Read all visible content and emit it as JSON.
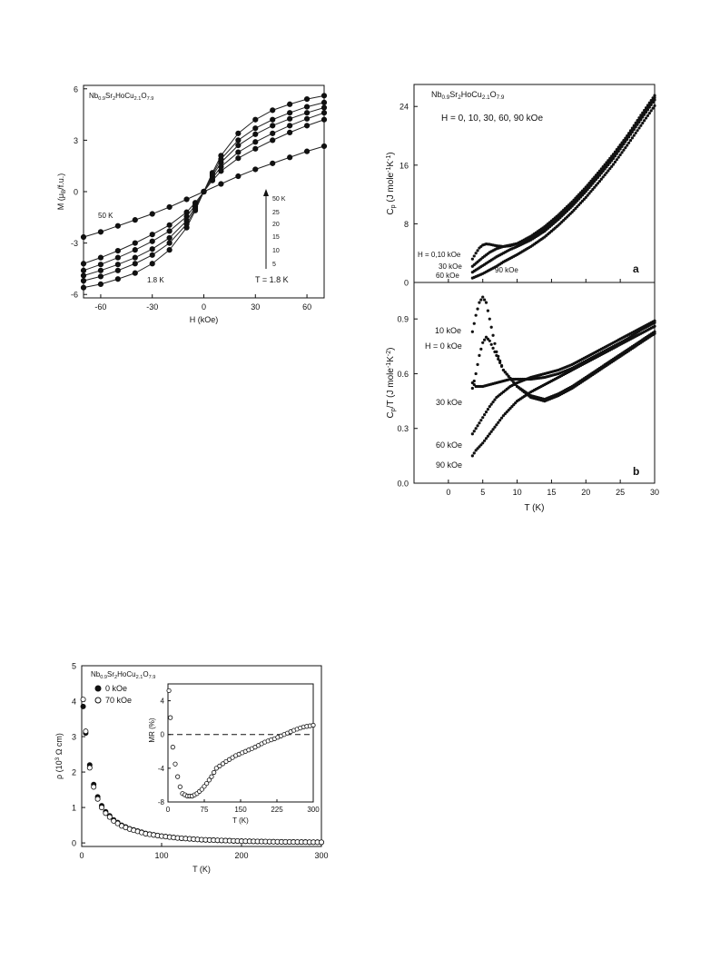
{
  "charts": {
    "magnetization": {
      "compound": {
        "base": "Nb",
        "s1": "0.9",
        "b2": "Sr",
        "s2": "2",
        "b3": "HoCu",
        "s3": "2.1",
        "b4": "O",
        "s4": "7.9"
      },
      "xlabel": "H (kOe)",
      "ylabel": "M (μ",
      "ylabel_sub": "B",
      "ylabel_end": "/f.u.)",
      "xticks": [
        "-60",
        "-30",
        "0",
        "30",
        "60"
      ],
      "yticks": [
        "6",
        "3",
        "0",
        "-3",
        "-6"
      ],
      "legend_temps": [
        "50 K",
        "25",
        "20",
        "15",
        "10",
        "5"
      ],
      "temp_caption": "T = 1.8 K",
      "label_50K": "50 K",
      "label_1_8K": "1.8 K"
    },
    "heat_capacity": {
      "compound": {
        "base": "Nb",
        "s1": "0.9",
        "b2": "Sr",
        "s2": "2",
        "b3": "HoCu",
        "s3": "2.1",
        "b4": "O",
        "s4": "7.9"
      },
      "fields_caption": "H = 0, 10, 30, 60, 90 kOe",
      "panel_a": "a",
      "panel_b": "b",
      "ylabel_a": "C",
      "ylabel_a_sub": "p",
      "ylabel_a_unit": " (J mole",
      "ylabel_a_sup1": "-1",
      "ylabel_a_mid": "K",
      "ylabel_a_sup2": "-1",
      "ylabel_a_end": ")",
      "ylabel_b": "C",
      "ylabel_b_sub": "p",
      "ylabel_b_unit": "/T (J mole",
      "ylabel_b_sup1": "-1",
      "ylabel_b_mid": "K",
      "ylabel_b_sup2": "-2",
      "ylabel_b_end": ")",
      "xlabel": "T (K)",
      "xticks": [
        "0",
        "5",
        "10",
        "15",
        "20",
        "25",
        "30"
      ],
      "yticks_a": [
        "24",
        "16",
        "8",
        "0"
      ],
      "yticks_b": [
        "0.9",
        "0.6",
        "0.3",
        "0.0"
      ],
      "labels_a": [
        "H = 0,10 kOe",
        "30 kOe",
        "60 kOe",
        "90 kOe"
      ],
      "labels_b": [
        "10 kOe",
        "H = 0 kOe",
        "30 kOe",
        "60 kOe",
        "90 kOe"
      ]
    },
    "resistivity": {
      "compound": {
        "base": "Nb",
        "s1": "0.9",
        "b2": "Sr",
        "s2": "2",
        "b3": "HoCu",
        "s3": "2.1",
        "b4": "O",
        "s4": "7.9"
      },
      "legend": [
        "0 kOe",
        "70 kOe"
      ],
      "xlabel": "T (K)",
      "ylabel": "ρ (10",
      "ylabel_sup": "3",
      "ylabel_end": " Ω cm)",
      "xticks": [
        "0",
        "100",
        "200",
        "300"
      ],
      "yticks": [
        "5",
        "4",
        "3",
        "2",
        "1",
        "0"
      ],
      "inset_xlabel": "T (K)",
      "inset_ylabel": "MR (%)",
      "inset_xticks": [
        "0",
        "75",
        "150",
        "225",
        "300"
      ],
      "inset_yticks": [
        "4",
        "0",
        "-4",
        "-8"
      ]
    }
  },
  "chart_data": [
    {
      "type": "line",
      "title": "",
      "xlabel": "H (kOe)",
      "ylabel": "M (μB/f.u.)",
      "xlim": [
        -70,
        70
      ],
      "ylim": [
        -6.2,
        6.2
      ],
      "series": [
        {
          "name": "1.8 K",
          "x": [
            -70,
            -60,
            -50,
            -40,
            -30,
            -20,
            -10,
            -5,
            0,
            5,
            10,
            20,
            30,
            40,
            50,
            60,
            70
          ],
          "y": [
            -5.6,
            -5.4,
            -5.1,
            -4.75,
            -4.2,
            -3.4,
            -2.1,
            -1.1,
            0,
            1.1,
            2.1,
            3.4,
            4.2,
            4.75,
            5.1,
            5.4,
            5.6
          ]
        },
        {
          "name": "5",
          "x": [
            -70,
            -60,
            -50,
            -40,
            -30,
            -20,
            -10,
            -5,
            0,
            5,
            10,
            20,
            30,
            40,
            50,
            60,
            70
          ],
          "y": [
            -5.2,
            -4.95,
            -4.6,
            -4.2,
            -3.7,
            -3.0,
            -1.9,
            -1.0,
            0,
            1.0,
            1.9,
            3.0,
            3.7,
            4.2,
            4.6,
            4.95,
            5.2
          ]
        },
        {
          "name": "10",
          "x": [
            -70,
            -60,
            -50,
            -40,
            -30,
            -20,
            -10,
            -5,
            0,
            5,
            10,
            20,
            30,
            40,
            50,
            60,
            70
          ],
          "y": [
            -4.9,
            -4.6,
            -4.25,
            -3.85,
            -3.35,
            -2.7,
            -1.7,
            -0.9,
            0,
            0.9,
            1.7,
            2.7,
            3.35,
            3.85,
            4.25,
            4.6,
            4.9
          ]
        },
        {
          "name": "15",
          "x": [
            -70,
            -60,
            -50,
            -40,
            -30,
            -20,
            -10,
            -5,
            0,
            5,
            10,
            20,
            30,
            40,
            50,
            60,
            70
          ],
          "y": [
            -4.6,
            -4.25,
            -3.85,
            -3.4,
            -2.9,
            -2.3,
            -1.45,
            -0.78,
            0,
            0.78,
            1.45,
            2.3,
            2.9,
            3.4,
            3.85,
            4.25,
            4.6
          ]
        },
        {
          "name": "20",
          "x": [
            -70,
            -60,
            -50,
            -40,
            -30,
            -20,
            -10,
            -5,
            0,
            5,
            10,
            20,
            30,
            40,
            50,
            60,
            70
          ],
          "y": [
            -4.2,
            -3.85,
            -3.45,
            -3.0,
            -2.5,
            -1.95,
            -1.2,
            -0.65,
            0,
            0.65,
            1.2,
            1.95,
            2.5,
            3.0,
            3.45,
            3.85,
            4.2
          ]
        },
        {
          "name": "50 K",
          "x": [
            -70,
            -60,
            -50,
            -40,
            -30,
            -20,
            -10,
            0,
            10,
            20,
            30,
            40,
            50,
            60,
            70
          ],
          "y": [
            -2.65,
            -2.35,
            -2.0,
            -1.65,
            -1.3,
            -0.9,
            -0.45,
            0,
            0.45,
            0.9,
            1.3,
            1.65,
            2.0,
            2.35,
            2.65
          ]
        }
      ]
    },
    {
      "type": "line",
      "title": "",
      "xlabel": "T (K)",
      "ylabel": "Cp (J mole-1 K-1)",
      "xlim": [
        -5,
        30
      ],
      "ylim": [
        0,
        27
      ],
      "series": [
        {
          "name": "0, 10 kOe",
          "x": [
            3.5,
            4,
            4.5,
            5,
            5.5,
            6,
            7,
            8,
            9,
            10,
            12,
            14,
            16,
            18,
            20,
            22,
            24,
            26,
            28,
            30
          ],
          "y": [
            3.2,
            4.0,
            4.7,
            5.1,
            5.25,
            5.2,
            5.0,
            4.9,
            5.0,
            5.3,
            6.3,
            7.6,
            9.2,
            11.0,
            13.0,
            15.2,
            17.5,
            20.0,
            22.8,
            25.5
          ]
        },
        {
          "name": "30 kOe",
          "x": [
            3.5,
            4,
            5,
            6,
            7,
            8,
            9,
            10,
            12,
            14,
            16,
            18,
            20,
            22,
            24,
            26,
            28,
            30
          ],
          "y": [
            2.2,
            2.6,
            3.4,
            4.1,
            4.6,
            4.9,
            5.1,
            5.3,
            6.1,
            7.3,
            8.9,
            10.7,
            12.7,
            14.9,
            17.2,
            19.8,
            22.5,
            25.2
          ]
        },
        {
          "name": "60 kOe",
          "x": [
            3.5,
            4,
            5,
            6,
            7,
            8,
            9,
            10,
            12,
            14,
            16,
            18,
            20,
            22,
            24,
            26,
            28,
            30
          ],
          "y": [
            1.4,
            1.7,
            2.3,
            2.9,
            3.5,
            4.0,
            4.5,
            4.9,
            5.8,
            7.0,
            8.6,
            10.4,
            12.4,
            14.6,
            16.9,
            19.5,
            22.2,
            24.9
          ]
        },
        {
          "name": "90 kOe",
          "x": [
            3.5,
            4,
            5,
            6,
            7,
            8,
            9,
            10,
            12,
            14,
            16,
            18,
            20,
            22,
            24,
            26,
            28,
            30
          ],
          "y": [
            0.6,
            0.8,
            1.2,
            1.7,
            2.2,
            2.8,
            3.3,
            3.8,
            4.9,
            6.2,
            7.8,
            9.6,
            11.6,
            13.8,
            16.1,
            18.7,
            21.4,
            24.1
          ]
        }
      ]
    },
    {
      "type": "line",
      "title": "",
      "xlabel": "T (K)",
      "ylabel": "Cp/T (J mole-1 K-2)",
      "xlim": [
        -5,
        30
      ],
      "ylim": [
        0,
        1.1
      ],
      "series": [
        {
          "name": "10 kOe",
          "x": [
            3.5,
            4,
            4.5,
            5,
            5.5,
            6,
            7,
            8,
            10,
            12,
            14,
            16,
            18,
            20,
            22,
            24,
            26,
            28,
            30
          ],
          "y": [
            0.83,
            0.92,
            0.99,
            1.02,
            0.99,
            0.9,
            0.72,
            0.62,
            0.53,
            0.47,
            0.45,
            0.48,
            0.52,
            0.57,
            0.62,
            0.67,
            0.72,
            0.77,
            0.82
          ]
        },
        {
          "name": "H = 0 kOe",
          "x": [
            3.5,
            4,
            4.5,
            5,
            5.5,
            6,
            7,
            8,
            10,
            12,
            14,
            16,
            18,
            20,
            22,
            24,
            26,
            28,
            30
          ],
          "y": [
            0.52,
            0.6,
            0.7,
            0.77,
            0.8,
            0.78,
            0.7,
            0.62,
            0.53,
            0.48,
            0.46,
            0.49,
            0.53,
            0.58,
            0.63,
            0.68,
            0.73,
            0.78,
            0.83
          ]
        },
        {
          "name": "30 kOe",
          "x": [
            3.5,
            4,
            5,
            6,
            7,
            8,
            9,
            10,
            12,
            14,
            16,
            18,
            20,
            22,
            24,
            26,
            28,
            30
          ],
          "y": [
            0.55,
            0.53,
            0.53,
            0.54,
            0.55,
            0.56,
            0.57,
            0.57,
            0.57,
            0.58,
            0.6,
            0.63,
            0.67,
            0.71,
            0.75,
            0.79,
            0.84,
            0.88
          ]
        },
        {
          "name": "60 kOe",
          "x": [
            3.5,
            4,
            5,
            6,
            7,
            8,
            9,
            10,
            12,
            14,
            16,
            18,
            20,
            22,
            24,
            26,
            28,
            30
          ],
          "y": [
            0.27,
            0.3,
            0.36,
            0.42,
            0.47,
            0.5,
            0.53,
            0.55,
            0.58,
            0.6,
            0.62,
            0.65,
            0.69,
            0.73,
            0.77,
            0.81,
            0.85,
            0.89
          ]
        },
        {
          "name": "90 kOe",
          "x": [
            3.5,
            4,
            5,
            6,
            7,
            8,
            9,
            10,
            12,
            14,
            16,
            18,
            20,
            22,
            24,
            26,
            28,
            30
          ],
          "y": [
            0.15,
            0.18,
            0.22,
            0.27,
            0.32,
            0.37,
            0.41,
            0.45,
            0.5,
            0.54,
            0.58,
            0.62,
            0.66,
            0.7,
            0.74,
            0.78,
            0.82,
            0.86
          ]
        }
      ]
    },
    {
      "type": "scatter",
      "title": "",
      "xlabel": "T (K)",
      "ylabel": "ρ (10^3 Ω cm)",
      "xlim": [
        0,
        300
      ],
      "ylim": [
        -0.1,
        5
      ],
      "series": [
        {
          "name": "0 kOe",
          "x": [
            1.8,
            5,
            10,
            15,
            20,
            25,
            30,
            40,
            50,
            60,
            80,
            100,
            120,
            150,
            200,
            250,
            300
          ],
          "y": [
            3.85,
            3.1,
            2.2,
            1.65,
            1.3,
            1.05,
            0.88,
            0.65,
            0.5,
            0.4,
            0.27,
            0.19,
            0.14,
            0.09,
            0.05,
            0.03,
            0.02
          ]
        },
        {
          "name": "70 kOe",
          "x": [
            1.8,
            5,
            10,
            15,
            20,
            25,
            30,
            40,
            50,
            60,
            80,
            100,
            120,
            150,
            200,
            250,
            300
          ],
          "y": [
            4.05,
            3.15,
            2.12,
            1.58,
            1.24,
            1.0,
            0.84,
            0.62,
            0.48,
            0.39,
            0.26,
            0.19,
            0.14,
            0.09,
            0.05,
            0.03,
            0.02
          ]
        }
      ]
    },
    {
      "type": "scatter",
      "title": "",
      "xlabel": "T (K)",
      "ylabel": "MR (%)",
      "xlim": [
        0,
        300
      ],
      "ylim": [
        -8,
        6
      ],
      "series": [
        {
          "name": "MR",
          "x": [
            2,
            5,
            10,
            15,
            20,
            25,
            30,
            40,
            50,
            60,
            70,
            80,
            90,
            100,
            120,
            140,
            160,
            180,
            200,
            220,
            240,
            260,
            280,
            300
          ],
          "y": [
            5.2,
            2.0,
            -1.5,
            -3.5,
            -5.0,
            -6.2,
            -7.0,
            -7.3,
            -7.3,
            -7.0,
            -6.5,
            -5.8,
            -5.0,
            -4.0,
            -3.2,
            -2.5,
            -2.0,
            -1.5,
            -0.9,
            -0.5,
            0.0,
            0.5,
            0.9,
            1.1
          ]
        }
      ]
    }
  ]
}
